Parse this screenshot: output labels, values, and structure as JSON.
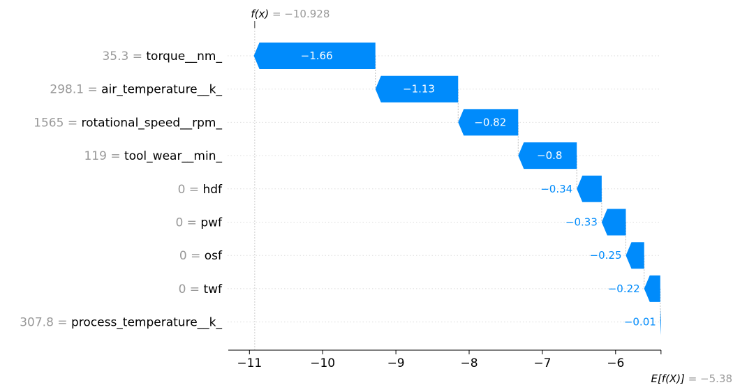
{
  "chart_data": {
    "type": "waterfall",
    "title": "",
    "xlabel": "",
    "ylabel": "",
    "xlim": [
      -11.3,
      -5.0
    ],
    "xticks": [
      -11,
      -10,
      -9,
      -8,
      -7,
      -6
    ],
    "xtick_labels": [
      "−11",
      "−10",
      "−9",
      "−8",
      "−7",
      "−6"
    ],
    "base_value": -5.38,
    "output_value": -10.928,
    "base_label": {
      "math": "E[f(X)]",
      "equals": " = ",
      "value": "−5.38"
    },
    "output_label": {
      "math": "f(x)",
      "equals": " = ",
      "value": "−10.928"
    },
    "colors": {
      "negative": "#008bfb",
      "gray": "#999999"
    },
    "features": [
      {
        "feature_value": "35.3",
        "equals": " = ",
        "name": "torque__nm_",
        "contribution": -1.66,
        "label": "−1.66"
      },
      {
        "feature_value": "298.1",
        "equals": " = ",
        "name": "air_temperature__k_",
        "contribution": -1.13,
        "label": "−1.13"
      },
      {
        "feature_value": "1565",
        "equals": " = ",
        "name": "rotational_speed__rpm_",
        "contribution": -0.82,
        "label": "−0.82"
      },
      {
        "feature_value": "119",
        "equals": " = ",
        "name": "tool_wear__min_",
        "contribution": -0.8,
        "label": "−0.8"
      },
      {
        "feature_value": "0",
        "equals": " = ",
        "name": "hdf",
        "contribution": -0.34,
        "label": "−0.34"
      },
      {
        "feature_value": "0",
        "equals": " = ",
        "name": "pwf",
        "contribution": -0.33,
        "label": "−0.33"
      },
      {
        "feature_value": "0",
        "equals": " = ",
        "name": "osf",
        "contribution": -0.25,
        "label": "−0.25"
      },
      {
        "feature_value": "0",
        "equals": " = ",
        "name": "twf",
        "contribution": -0.22,
        "label": "−0.22"
      },
      {
        "feature_value": "307.8",
        "equals": " = ",
        "name": "process_temperature__k_",
        "contribution": -0.01,
        "label": "−0.01"
      }
    ]
  }
}
